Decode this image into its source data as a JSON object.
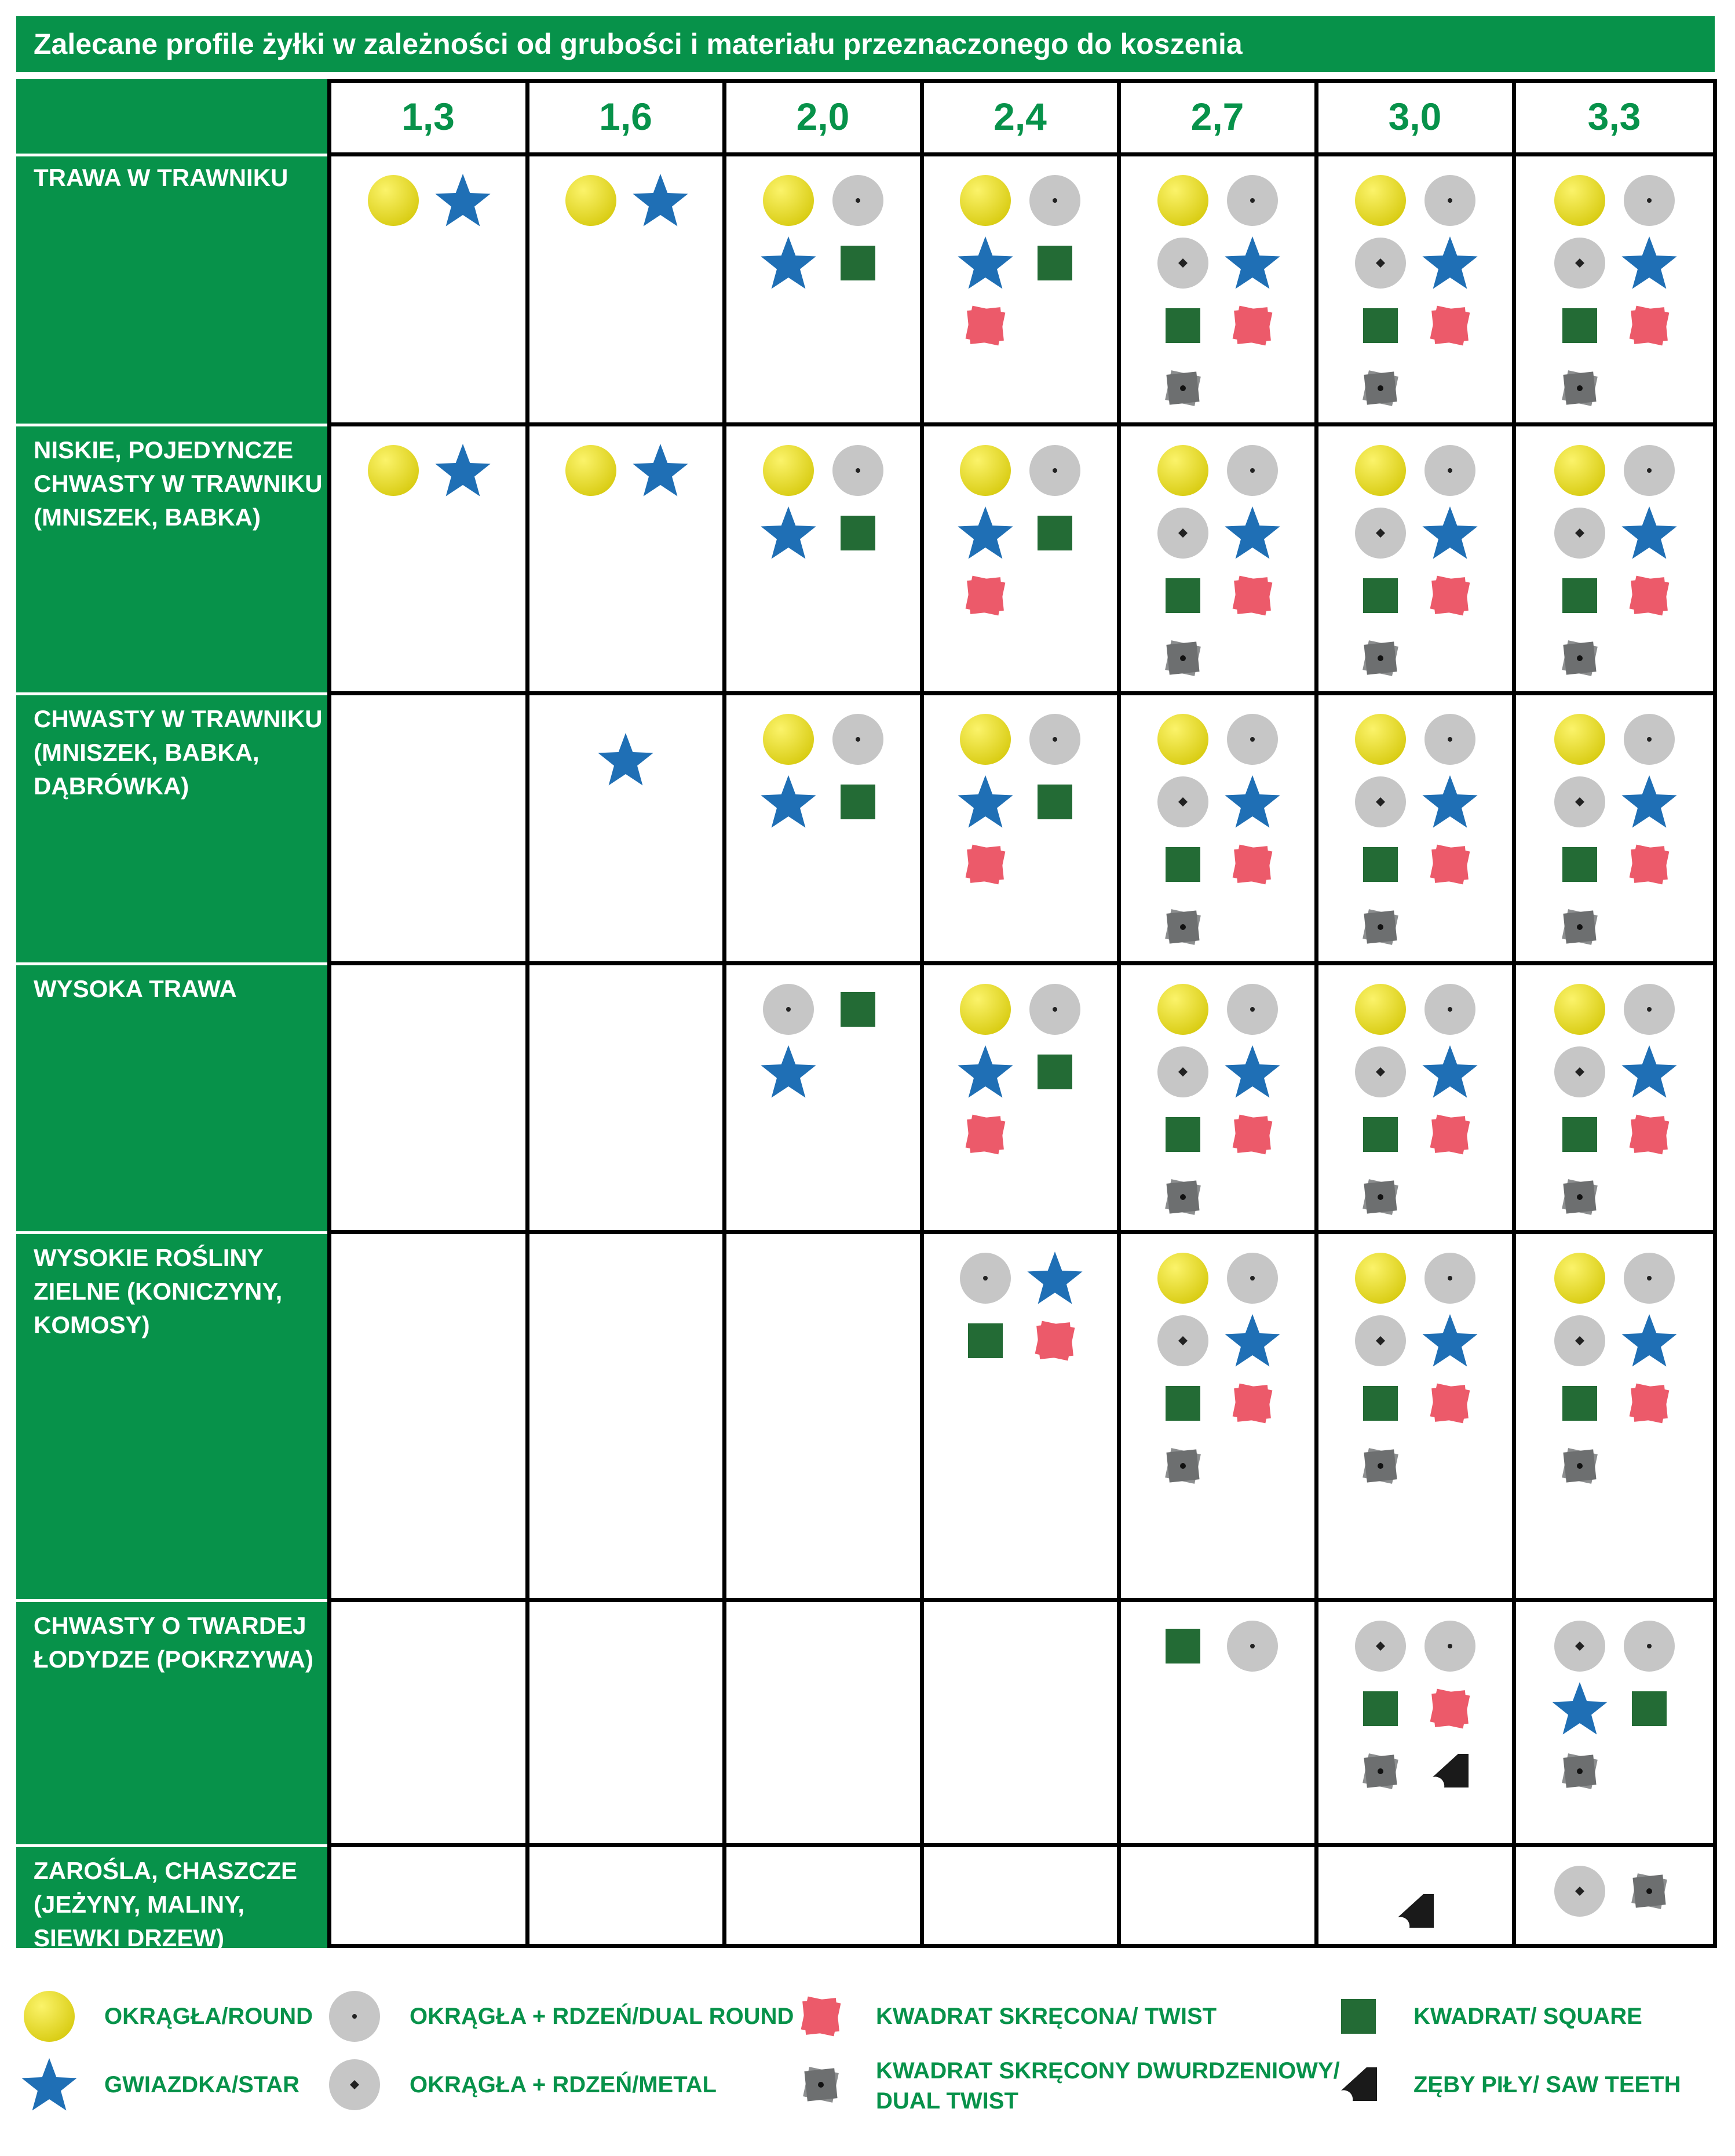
{
  "title": "Zalecane profile żyłki w zależności od grubości i materiału przeznaczonego do koszenia",
  "columns": [
    "1,3",
    "1,6",
    "2,0",
    "2,4",
    "2,7",
    "3,0",
    "3,3"
  ],
  "rows": [
    {
      "label": "TRAWA W TRAWNIKU",
      "cells": [
        [
          "round",
          "star"
        ],
        [
          "round",
          "star"
        ],
        [
          "round",
          "dual_round",
          "star",
          "square"
        ],
        [
          "round",
          "dual_round",
          "star",
          "square",
          "twist"
        ],
        [
          "round",
          "dual_round",
          "metal",
          "star",
          "square",
          "twist",
          "dual_twist"
        ],
        [
          "round",
          "dual_round",
          "metal",
          "star",
          "square",
          "twist",
          "dual_twist"
        ],
        [
          "round",
          "dual_round",
          "metal",
          "star",
          "square",
          "twist",
          "dual_twist"
        ]
      ]
    },
    {
      "label": "NISKIE, POJEDYNCZE\nCHWASTY W TRAWNIKU\n(MNISZEK, BABKA)",
      "cells": [
        [
          "round",
          "star"
        ],
        [
          "round",
          "star"
        ],
        [
          "round",
          "dual_round",
          "star",
          "square"
        ],
        [
          "round",
          "dual_round",
          "star",
          "square",
          "twist"
        ],
        [
          "round",
          "dual_round",
          "metal",
          "star",
          "square",
          "twist",
          "dual_twist"
        ],
        [
          "round",
          "dual_round",
          "metal",
          "star",
          "square",
          "twist",
          "dual_twist"
        ],
        [
          "round",
          "dual_round",
          "metal",
          "star",
          "square",
          "twist",
          "dual_twist"
        ]
      ]
    },
    {
      "label": "CHWASTY W TRAWNIKU\n(MNISZEK, BABKA,\nDĄBRÓWKA)",
      "cells": [
        [],
        [
          "star_center"
        ],
        [
          "round",
          "dual_round",
          "star",
          "square"
        ],
        [
          "round",
          "dual_round",
          "star",
          "square",
          "twist"
        ],
        [
          "round",
          "dual_round",
          "metal",
          "star",
          "square",
          "twist",
          "dual_twist"
        ],
        [
          "round",
          "dual_round",
          "metal",
          "star",
          "square",
          "twist",
          "dual_twist"
        ],
        [
          "round",
          "dual_round",
          "metal",
          "star",
          "square",
          "twist",
          "dual_twist"
        ]
      ]
    },
    {
      "label": "WYSOKA TRAWA",
      "cells": [
        [],
        [],
        [
          "dual_round",
          "square",
          "star"
        ],
        [
          "round",
          "dual_round",
          "star",
          "square",
          "twist"
        ],
        [
          "round",
          "dual_round",
          "metal",
          "star",
          "square",
          "twist",
          "dual_twist"
        ],
        [
          "round",
          "dual_round",
          "metal",
          "star",
          "square",
          "twist",
          "dual_twist"
        ],
        [
          "round",
          "dual_round",
          "metal",
          "star",
          "square",
          "twist",
          "dual_twist"
        ]
      ]
    },
    {
      "label": "WYSOKIE ROŚLINY\nZIELNE (KONICZYNY,\nKOMOSY)",
      "cells": [
        [],
        [],
        [],
        [
          "dual_round",
          "star",
          "square",
          "twist"
        ],
        [
          "round",
          "dual_round",
          "metal",
          "star",
          "square",
          "twist",
          "dual_twist"
        ],
        [
          "round",
          "dual_round",
          "metal",
          "star",
          "square",
          "twist",
          "dual_twist"
        ],
        [
          "round",
          "dual_round",
          "metal",
          "star",
          "square",
          "twist",
          "dual_twist"
        ]
      ]
    },
    {
      "label": "CHWASTY O TWARDEJ\nŁODYDZE (POKRZYWA)",
      "cells": [
        [],
        [],
        [],
        [],
        [
          "square",
          "dual_round"
        ],
        [
          "metal",
          "dual_round",
          "square",
          "twist",
          "dual_twist",
          "saw_teeth"
        ],
        [
          "metal",
          "dual_round",
          "star",
          "square",
          "dual_twist"
        ]
      ]
    },
    {
      "label": "ZAROŚLA, CHASZCZE\n(JEŻYNY, MALINY,\nSIEWKI DRZEW)",
      "cells": [
        [],
        [],
        [],
        [],
        [],
        [
          "saw_teeth_center"
        ],
        [
          "metal",
          "dual_twist"
        ]
      ]
    }
  ],
  "legend": [
    {
      "symbol": "round",
      "label": "OKRĄGŁA/ROUND"
    },
    {
      "symbol": "dual_round",
      "label": "OKRĄGŁA + RDZEŃ/DUAL ROUND"
    },
    {
      "symbol": "twist",
      "label": "KWADRAT SKRĘCONA/ TWIST"
    },
    {
      "symbol": "square",
      "label": "KWADRAT/ SQUARE"
    },
    {
      "symbol": "star",
      "label": "GWIAZDKA/STAR"
    },
    {
      "symbol": "metal",
      "label": "OKRĄGŁA + RDZEŃ/METAL"
    },
    {
      "symbol": "dual_twist",
      "label": "KWADRAT SKRĘCONY DWURDZENIOWY/\nDUAL TWIST"
    },
    {
      "symbol": "saw_teeth",
      "label": "ZĘBY PIŁY/ SAW TEETH"
    }
  ],
  "colors": {
    "green": "#07924a",
    "round": "#e8dc1a",
    "star": "#1f6fb5",
    "square": "#236b35",
    "twist": "#ec5a6a",
    "grey": "#c6c6c6",
    "dual_twist": "#6d6f70",
    "saw_teeth": "#1a1a1a"
  }
}
